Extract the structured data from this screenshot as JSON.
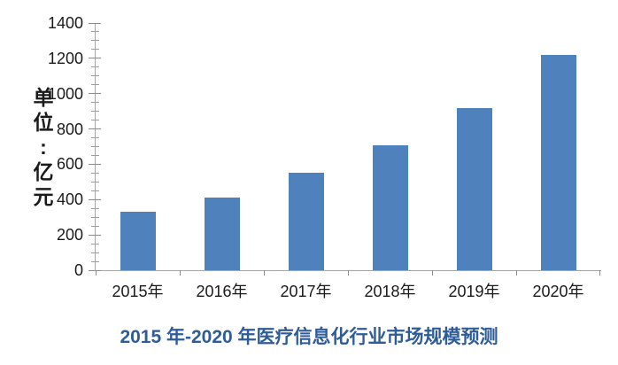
{
  "chart_data": {
    "type": "bar",
    "title": "2015 年-2020 年医疗信息化行业市场规模预测",
    "ylabel": "单位:亿元",
    "xlabel": "",
    "categories": [
      "2015年",
      "2016年",
      "2017年",
      "2018年",
      "2019年",
      "2020年"
    ],
    "values": [
      330,
      410,
      550,
      710,
      920,
      1220
    ],
    "unit": "亿元",
    "ylim": [
      0,
      1400
    ],
    "yticks": [
      0,
      200,
      400,
      600,
      800,
      1000,
      1200,
      1400
    ],
    "ytick_labels": [
      "0",
      "200",
      "400",
      "600",
      "800",
      "1000",
      "1200",
      "1400"
    ],
    "yminor_step": 50,
    "grid": false,
    "legend": false,
    "colors": {
      "bar": "#4f81bd",
      "title": "#2e5c99",
      "axis": "#a6a6a6",
      "tick": "#8c8c8c",
      "text": "#1a1a1a"
    }
  }
}
